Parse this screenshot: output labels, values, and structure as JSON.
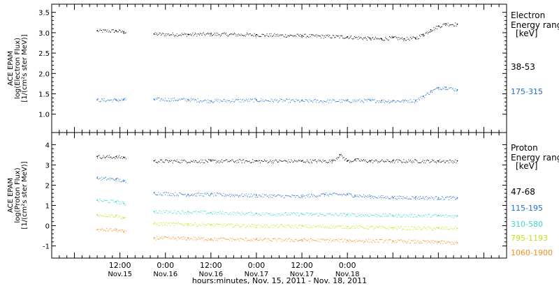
{
  "chart_data": [
    {
      "type": "scatter",
      "panel": "electron",
      "ylabel_lines": [
        "ACE EPAM",
        "log(Electron Flux)",
        "[1/(cm²s ster MeV)]"
      ],
      "ylim": [
        0.55,
        3.7
      ],
      "yticks": [
        "1.0",
        "1.5",
        "2.0",
        "2.5",
        "3.0",
        "3.5"
      ],
      "legend_title": [
        "Electron",
        "Energy range",
        "[keV]"
      ],
      "series": [
        {
          "name": "38-53",
          "color": "#000000",
          "x": [
            -6,
            -1,
            1,
            9,
            18,
            24,
            36,
            48,
            60,
            66,
            69,
            72,
            75,
            78,
            80,
            82,
            84,
            86,
            89
          ],
          "y": [
            3.05,
            3.05,
            3.02,
            2.97,
            2.96,
            2.97,
            2.95,
            2.93,
            2.9,
            2.86,
            2.85,
            2.88,
            2.85,
            2.87,
            2.96,
            3.07,
            3.16,
            3.22,
            3.21
          ]
        },
        {
          "name": "175-315",
          "color": "#1c6fd1",
          "x": [
            -6,
            -1,
            1,
            9,
            18,
            24,
            36,
            48,
            60,
            66,
            69,
            72,
            75,
            78,
            80,
            82,
            84,
            86,
            89
          ],
          "y": [
            1.35,
            1.35,
            1.36,
            1.37,
            1.36,
            1.33,
            1.35,
            1.33,
            1.33,
            1.34,
            1.33,
            1.33,
            1.33,
            1.34,
            1.44,
            1.56,
            1.65,
            1.66,
            1.6
          ]
        }
      ]
    },
    {
      "type": "scatter",
      "panel": "proton",
      "ylabel_lines": [
        "ACE EPAM",
        "log(Proton Flux)",
        "[1/(cm²s ster MeV)]"
      ],
      "ylim": [
        -1.6,
        4.6
      ],
      "yticks": [
        "-1",
        "0",
        "1",
        "2",
        "3",
        "4"
      ],
      "legend_title": [
        "Proton",
        "Energy range",
        "[keV]"
      ],
      "series": [
        {
          "name": "47-68",
          "color": "#000000",
          "x": [
            -6,
            -1,
            1,
            9,
            24,
            36,
            48,
            56,
            58,
            60,
            62,
            66,
            72,
            84,
            89
          ],
          "y": [
            3.42,
            3.4,
            3.38,
            3.2,
            3.2,
            3.2,
            3.2,
            3.2,
            3.5,
            3.2,
            3.25,
            3.2,
            3.2,
            3.2,
            3.2
          ]
        },
        {
          "name": "115-195",
          "color": "#1c6fd1",
          "x": [
            -6,
            -1,
            1,
            9,
            18,
            24,
            36,
            48,
            54,
            60,
            62,
            66,
            72,
            78,
            84,
            89
          ],
          "y": [
            2.35,
            2.3,
            2.2,
            1.62,
            1.55,
            1.55,
            1.5,
            1.45,
            1.55,
            1.55,
            1.5,
            1.45,
            1.4,
            1.4,
            1.38,
            1.38
          ]
        },
        {
          "name": "310-580",
          "color": "#38d8d0",
          "x": [
            -6,
            -1,
            1,
            9,
            18,
            24,
            36,
            48,
            60,
            72,
            84,
            89
          ],
          "y": [
            1.25,
            1.2,
            1.1,
            0.7,
            0.68,
            0.65,
            0.6,
            0.58,
            0.55,
            0.52,
            0.5,
            0.48
          ]
        },
        {
          "name": "795-1193",
          "color": "#c6e01e",
          "x": [
            -6,
            -1,
            1,
            9,
            18,
            24,
            36,
            48,
            60,
            72,
            84,
            89
          ],
          "y": [
            0.55,
            0.5,
            0.4,
            0.1,
            0.08,
            0.05,
            0.0,
            -0.02,
            -0.05,
            -0.1,
            -0.12,
            -0.12
          ]
        },
        {
          "name": "1060-1900",
          "color": "#f0901e",
          "x": [
            -6,
            -1,
            1,
            9,
            18,
            24,
            36,
            48,
            60,
            72,
            84,
            89
          ],
          "y": [
            -0.2,
            -0.2,
            -0.3,
            -0.6,
            -0.62,
            -0.65,
            -0.68,
            -0.7,
            -0.72,
            -0.75,
            -0.8,
            -0.85
          ]
        }
      ]
    }
  ],
  "x_axis": {
    "range_hours": [
      -18,
      102
    ],
    "major_ticks": [
      {
        "h": 0,
        "time": "12:00",
        "date": "Nov.15"
      },
      {
        "h": 12,
        "time": "0:00",
        "date": "Nov.16"
      },
      {
        "h": 24,
        "time": "12:00",
        "date": "Nov.16"
      },
      {
        "h": 36,
        "time": "0:00",
        "date": "Nov.17"
      },
      {
        "h": 48,
        "time": "12:00",
        "date": "Nov.17"
      },
      {
        "h": 60,
        "time": "0:00",
        "date": "Nov.18"
      }
    ],
    "xlabel": "hours:minutes, Nov. 15, 2011 - Nov. 18, 2011"
  }
}
